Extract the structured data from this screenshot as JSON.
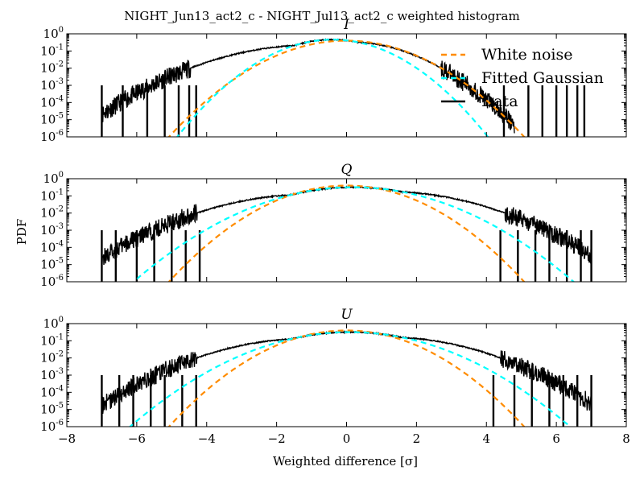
{
  "chart_data": {
    "type": "line",
    "title": "NIGHT_Jun13_act2_c - NIGHT_Jul13_act2_c weighted histogram",
    "xlabel": "Weighted difference [σ]",
    "ylabel": "PDF",
    "xlim": [
      -8,
      8
    ],
    "x_ticks": [
      "−8",
      "−6",
      "−4",
      "−2",
      "0",
      "2",
      "4",
      "6",
      "8"
    ],
    "ylim": [
      1e-06,
      1
    ],
    "yscale": "log",
    "y_ticks": [
      {
        "base": "10",
        "exp": "0"
      },
      {
        "base": "10",
        "exp": "-1"
      },
      {
        "base": "10",
        "exp": "-2"
      },
      {
        "base": "10",
        "exp": "-3"
      },
      {
        "base": "10",
        "exp": "-4"
      },
      {
        "base": "10",
        "exp": "-5"
      },
      {
        "base": "10",
        "exp": "-6"
      }
    ],
    "legend": {
      "placement": "top-right (first panel)",
      "entries": [
        {
          "label": "White noise",
          "color": "#ff8c00",
          "style": "dashed"
        },
        {
          "label": "Fitted Gaussian",
          "color": "#00ffff",
          "style": "dashed"
        },
        {
          "label": "Data",
          "color": "#000000",
          "style": "solid"
        }
      ]
    },
    "panels": [
      {
        "title": "I",
        "white_noise": {
          "mean": 0,
          "sigma": 1
        },
        "fitted_gaussian": {
          "mean": -0.4,
          "sigma": 0.87
        },
        "data": {
          "core": {
            "mean": -0.4,
            "sigma": 0.87
          },
          "wings": [
            {
              "side": "left",
              "x_start": -7.0,
              "x_end": -1.5,
              "amplitude": 0.3,
              "decay_per_sigma": 0.72
            },
            {
              "side": "right",
              "x_start": 0.3,
              "x_end": 4.8,
              "amplitude": 0.5,
              "decay_per_sigma": 1.0
            }
          ],
          "spikes_left": [
            -7.0,
            -6.4,
            -5.7,
            -5.2,
            -4.8,
            -4.5,
            -4.3
          ],
          "spikes_right": [
            4.5,
            5.2,
            5.6,
            6.0,
            6.3,
            6.6,
            6.8
          ]
        }
      },
      {
        "title": "Q",
        "white_noise": {
          "mean": 0,
          "sigma": 1
        },
        "fitted_gaussian": {
          "mean": 0.2,
          "sigma": 1.25
        },
        "data": {
          "core": {
            "mean": 0.2,
            "sigma": 1.25
          },
          "wings": [
            {
              "side": "left",
              "x_start": -7.0,
              "x_end": -1.6,
              "amplitude": 0.45,
              "decay_per_sigma": 0.7
            },
            {
              "side": "right",
              "x_start": 1.6,
              "x_end": 7.0,
              "amplitude": 0.45,
              "decay_per_sigma": 0.7
            }
          ],
          "spikes_left": [
            -7.0,
            -6.6,
            -6.0,
            -5.5,
            -5.0,
            -4.6,
            -4.2
          ],
          "spikes_right": [
            4.4,
            4.9,
            5.4,
            5.8,
            6.3,
            6.7,
            7.0
          ]
        }
      },
      {
        "title": "U",
        "white_noise": {
          "mean": 0,
          "sigma": 1
        },
        "fitted_gaussian": {
          "mean": 0.1,
          "sigma": 1.25
        },
        "data": {
          "core": {
            "mean": 0.1,
            "sigma": 1.25
          },
          "wings": [
            {
              "side": "left",
              "x_start": -7.0,
              "x_end": -1.6,
              "amplitude": 0.4,
              "decay_per_sigma": 0.72
            },
            {
              "side": "right",
              "x_start": 1.6,
              "x_end": 7.0,
              "amplitude": 0.4,
              "decay_per_sigma": 0.72
            }
          ],
          "spikes_left": [
            -7.0,
            -6.5,
            -6.1,
            -5.6,
            -5.2,
            -4.7,
            -4.3
          ],
          "spikes_right": [
            4.2,
            4.8,
            5.3,
            5.8,
            6.2,
            6.6,
            7.0
          ]
        }
      }
    ]
  }
}
